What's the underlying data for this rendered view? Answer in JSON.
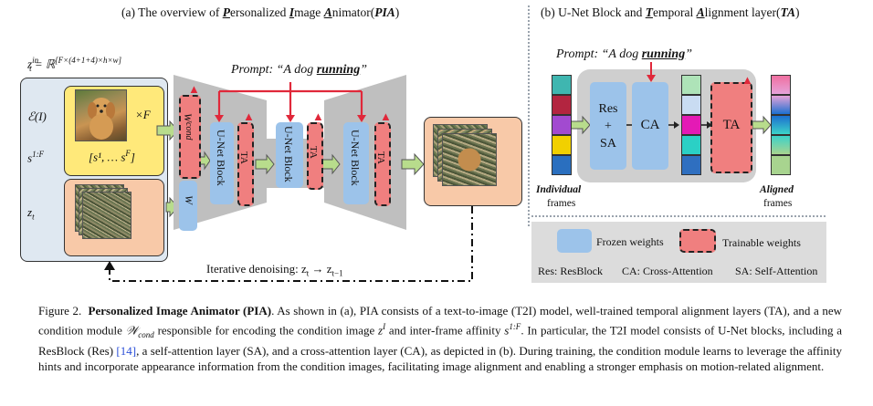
{
  "panel_a": {
    "title_prefix": "(a) The overview of ",
    "title_P": "P",
    "title_ersonalized": "ersonalized ",
    "title_I": "I",
    "title_mage": "mage ",
    "title_A": "A",
    "title_nimator": "nimator(",
    "title_pia": "PIA",
    "title_close": ")",
    "z_in_label": "z",
    "z_in_sup": "in",
    "z_in_sub": "t",
    "z_in_rhs": " = ℝ",
    "z_in_dims": "[F×(4+1+4)×h×w]",
    "encoder_label": "ℰ(I)",
    "times_f": "×F",
    "s_label": "s",
    "s_sup": "1:F",
    "s_set": "[s¹, … s",
    "s_set_sup": "F",
    "s_set_close": "]",
    "zt_label": "z",
    "zt_sub": "t",
    "prompt": "Prompt: “A dog running”",
    "prompt_prefix": "Prompt: “A dog ",
    "prompt_word": "running",
    "prompt_suffix": "”",
    "w_cond": "W",
    "w_cond_sub": "cond",
    "w_label": "W",
    "unet_block": "U-Net Block",
    "ta": "TA",
    "denoise_prefix": "Iterative denoising: z",
    "denoise_sub1": "t",
    "denoise_arrow": " → z",
    "denoise_sub2": "t−1"
  },
  "panel_b": {
    "title_prefix": "(b) U-Net Block and ",
    "title_T": "T",
    "title_emporal": "emporal ",
    "title_A": "A",
    "title_lignment": "lignment layer(",
    "title_ta": "TA",
    "title_close": ")",
    "prompt_prefix": "Prompt: “A dog ",
    "prompt_word": "running",
    "prompt_suffix": "”",
    "res": "Res",
    "plus": "+",
    "sa": "SA",
    "ca": "CA",
    "ta": "TA",
    "individual": "Individual",
    "frames1": "frames",
    "aligned": "Aligned",
    "frames2": "frames",
    "legend_frozen": "Frozen weights",
    "legend_trainable": "Trainable weights",
    "legend_res": "Res: ResBlock",
    "legend_ca": "CA: Cross-Attention",
    "legend_sa": "SA: Self-Attention",
    "colors": {
      "frozen": "#9cc3ea",
      "trainable": "#f07f7f",
      "condition_panel": "#ffe97a",
      "noise_panel": "#f8c9a8",
      "unet_gray": "#bfbfbf",
      "arrow_green": "#b8dc8c",
      "prompt_arrow": "#e0283a"
    },
    "input_frame_colors": [
      "#3fb6b0",
      "#b32540",
      "#a24ad0",
      "#f1d000",
      "#2a6fbf"
    ],
    "mid_frame_colors": [
      "#aee3b8",
      "#c9dcf2",
      "#e41ab5",
      "#2bd0c5",
      "#2f6fc0"
    ],
    "aligned_colors": [
      "#f06fa0",
      "#e6a3d9",
      "#1c6fd0",
      "#3cd2c9",
      "#a8d48f"
    ]
  },
  "caption": {
    "fig": "Figure 2.",
    "bold": "Personalized Image Animator (PIA)",
    "t1": ". As shown in (a), PIA consists of a text-to-image (T2I) model, well-trained temporal alignment layers (TA), and a new condition module ",
    "wcond": "𝒲",
    "wcond_sub": "cond",
    "t2": " responsible for encoding the condition image ",
    "zI": "z",
    "zI_sup": "I",
    "t3": " and inter-frame affinity ",
    "s": "s",
    "s_sup": "1:F",
    "t4": ". In particular, the T2I model consists of U-Net blocks, including a ResBlock (Res) ",
    "ref": "[14]",
    "t5": ", a self-attention layer (SA), and a cross-attention layer (CA), as depicted in (b). During training, the condition module learns to leverage the affinity hints and incorporate appearance information from the condition images, facilitating image alignment and enabling a stronger emphasis on motion-related alignment."
  }
}
